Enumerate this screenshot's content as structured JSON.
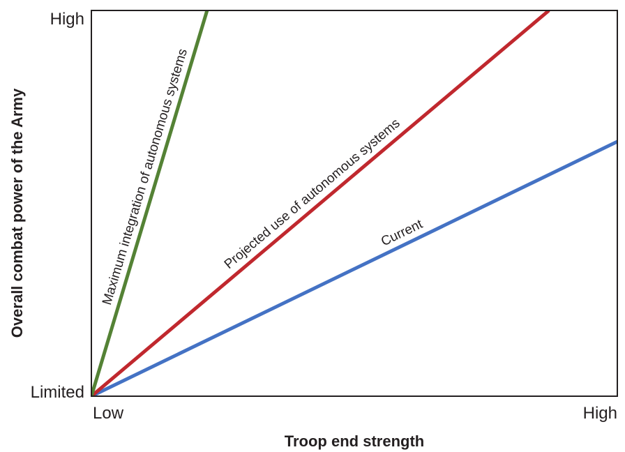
{
  "chart_data": {
    "type": "line",
    "xlabel": "Troop end strength",
    "ylabel": "Overall combat power of the Army",
    "x_ticks": [
      "Low",
      "High"
    ],
    "y_ticks": [
      "Limited",
      "High"
    ],
    "xlim": [
      0,
      1
    ],
    "ylim": [
      0,
      1
    ],
    "grid": false,
    "legend": "none (series labeled inline along lines)",
    "series": [
      {
        "name": "Current",
        "color": "#4472c4",
        "x": [
          0,
          1
        ],
        "y": [
          0,
          0.66
        ]
      },
      {
        "name": "Projected use of autonomous systems",
        "color": "#c0282e",
        "x": [
          0,
          0.87
        ],
        "y": [
          0,
          1
        ]
      },
      {
        "name": "Maximum integration of autonomous systems",
        "color": "#548235",
        "x": [
          0,
          0.22
        ],
        "y": [
          0,
          1
        ]
      }
    ]
  }
}
